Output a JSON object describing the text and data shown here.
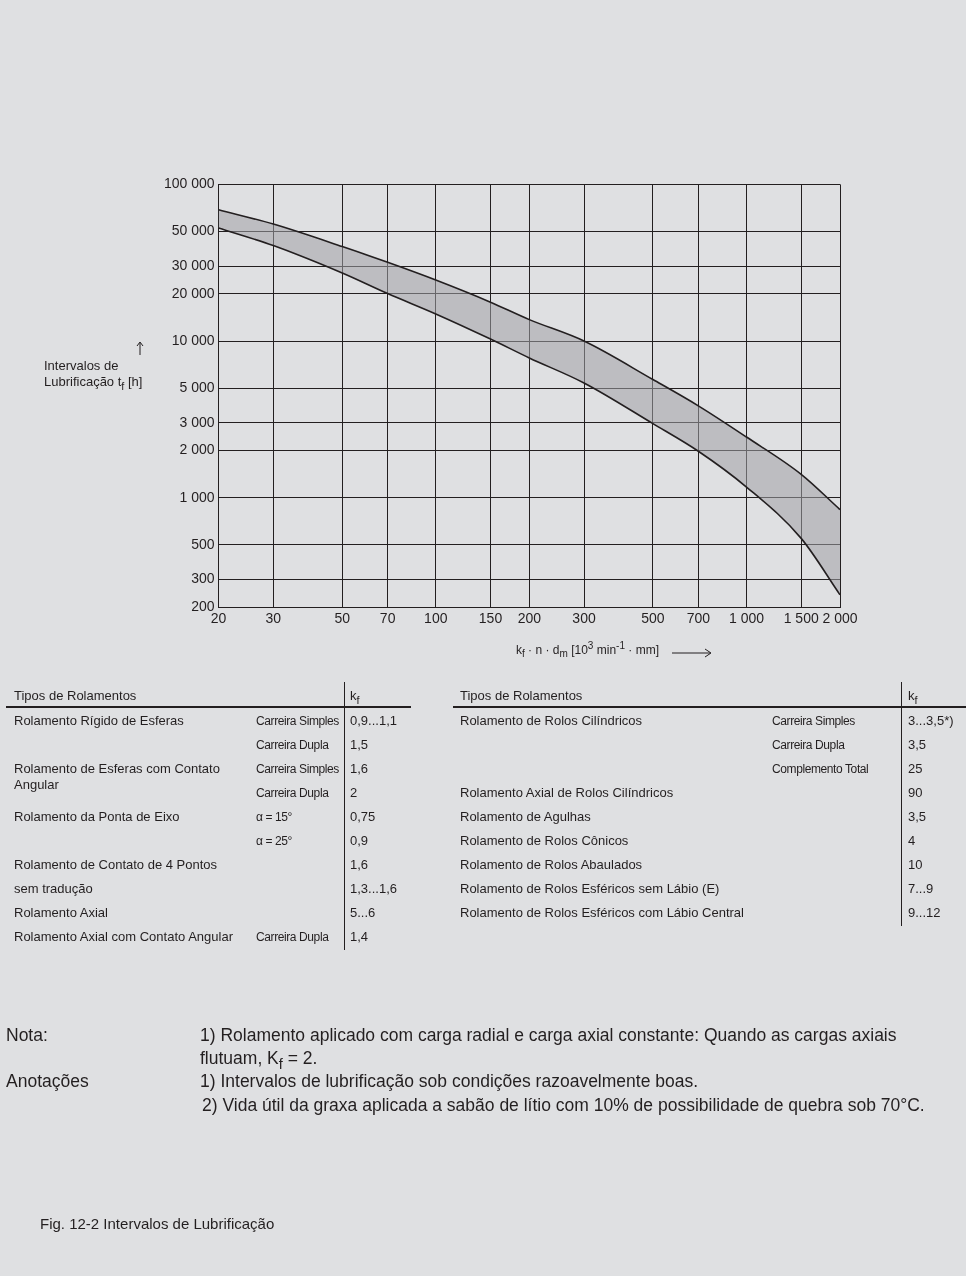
{
  "chart_data": {
    "type": "line",
    "title": "Fig. 12-2 Intervalos de Lubrificação",
    "xlabel": "k$_{f}$ · n · d$_{m}$ [10$^{3}$ min$^{-1}$ · mm]",
    "ylabel": "Intervalos de Lubrificação t$_{f}$ [h]",
    "log": "xy",
    "grid": true,
    "legend": false,
    "marker": "none",
    "line_style": "solid",
    "xlim": [
      20,
      2000
    ],
    "ylim": [
      200,
      100000
    ],
    "xticks": [
      20,
      30,
      50,
      70,
      100,
      150,
      200,
      300,
      500,
      700,
      {
        "value": 1000,
        "label": "1 000"
      },
      {
        "value": 1500,
        "label": "1 500"
      },
      {
        "value": 2000,
        "label": "2 000"
      }
    ],
    "yticks": [
      200,
      300,
      500,
      {
        "value": 1000,
        "label": "1 000"
      },
      {
        "value": 2000,
        "label": "2 000"
      },
      {
        "value": 3000,
        "label": "3 000"
      },
      {
        "value": 5000,
        "label": "5 000"
      },
      {
        "value": 10000,
        "label": "10 000"
      },
      {
        "value": 20000,
        "label": "20 000"
      },
      {
        "value": 30000,
        "label": "30 000"
      },
      {
        "value": 50000,
        "label": "50 000"
      },
      {
        "value": 100000,
        "label": "100 000"
      }
    ],
    "x": [
      20,
      30,
      50,
      70,
      100,
      150,
      200,
      300,
      500,
      700,
      1000,
      1500,
      2000
    ],
    "series": [
      {
        "type": "line",
        "color": "#231f20",
        "values": [
          52700,
          40700,
          27200,
          20100,
          14900,
          10300,
          7800,
          5400,
          2970,
          1980,
          1170,
          550,
          240
        ]
      },
      {
        "type": "area",
        "color": "#231f20",
        "values": [
          68900,
          55800,
          40100,
          31800,
          24500,
          17700,
          13700,
          10000,
          5680,
          3860,
          2440,
          1410,
          840
        ]
      }
    ],
    "annotations": [
      "Tipos de Rolamentos",
      "k$_{f}$",
      "Rolamento Rígido de Esferas",
      "Carreira Simples",
      "0,9...1,1",
      "Carreira Dupla",
      "1,5",
      "Rolamento de Esferas com Contato Angular",
      "Carreira Simples",
      "1,6",
      "Carreira Dupla",
      "2",
      "Rolamento da Ponta de Eixo",
      "α = 15°",
      "0,75",
      "α = 25°",
      "0,9",
      "Rolamento de Contato de 4 Pontos",
      "1,6",
      "sem tradução",
      "1,3...1,6",
      "Rolamento Axial",
      "5...6",
      "Rolamento Axial com Contato Angular",
      "Carreira Dupla",
      "1,4",
      "Tipos de Rolamentos",
      "k$_{f}$",
      "Rolamento de Rolos Cilíndricos",
      "Carreira Simples",
      "3...3,5*)",
      "Carreira Dupla",
      "3,5",
      "Complemento Total",
      "25",
      "Rolamento Axial de Rolos Cilíndricos",
      "90",
      "Rolamento de Agulhas",
      "3,5",
      "Rolamento de Rolos Cônicos",
      "4",
      "Rolamento de Rolos Abaulados",
      "10",
      "Rolamento de Rolos Esféricos sem Lábio (E)",
      "7...9",
      "Rolamento de Rolos Esféricos com Lábio Central",
      "9...12",
      "Nota:",
      "1) Rolamento aplicado com carga radial e carga axial constante: Quando as cargas axiais flutuam, K$_{f}$ = 2.",
      "Anotações",
      "1) Intervalos de lubrificação sob condições razoavelmente boas.",
      "2) Vida útil da graxa aplicada a sabão de lítio com 10% de possibilidade de quebra sob 70°C."
    ]
  }
}
